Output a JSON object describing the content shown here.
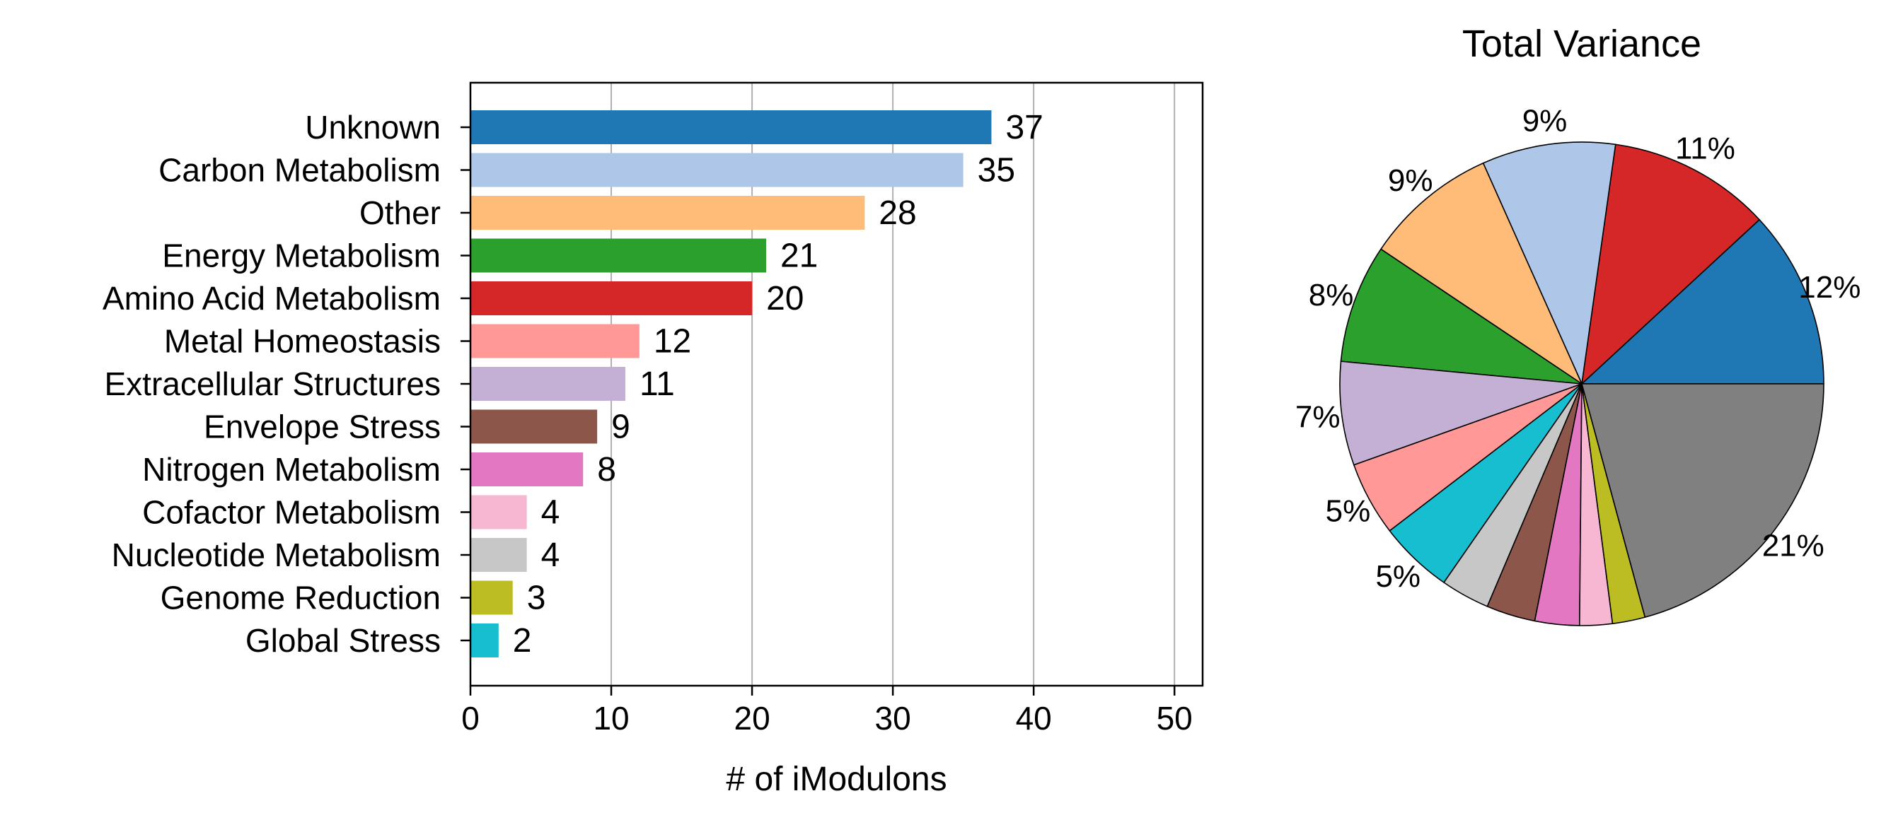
{
  "chart_data": [
    {
      "type": "bar",
      "orientation": "horizontal",
      "title": "",
      "xlabel": "# of iModulons",
      "ylabel": "",
      "xlim": [
        0,
        52
      ],
      "xticks": [
        0,
        10,
        20,
        30,
        40,
        50
      ],
      "grid": "vertical",
      "categories": [
        "Unknown",
        "Carbon Metabolism",
        "Other",
        "Energy Metabolism",
        "Amino Acid Metabolism",
        "Metal Homeostasis",
        "Extracellular Structures",
        "Envelope Stress",
        "Nitrogen Metabolism",
        "Cofactor Metabolism",
        "Nucleotide Metabolism",
        "Genome Reduction",
        "Global Stress"
      ],
      "values": [
        37,
        35,
        28,
        21,
        20,
        12,
        11,
        9,
        8,
        4,
        4,
        3,
        2
      ],
      "colors": [
        "#1f77b4",
        "#aec7e8",
        "#ffbb78",
        "#2ca02c",
        "#d62728",
        "#ff9896",
        "#c5b0d5",
        "#8c564b",
        "#e377c2",
        "#f7b6d2",
        "#c7c7c7",
        "#bcbd22",
        "#17becf"
      ]
    },
    {
      "type": "pie",
      "title": "Total Variance",
      "start_angle_deg": 0,
      "direction": "counterclockwise",
      "slices": [
        {
          "value": 12,
          "label": "12%",
          "color": "#1f77b4"
        },
        {
          "value": 11,
          "label": "11%",
          "color": "#d62728"
        },
        {
          "value": 9,
          "label": "9%",
          "color": "#aec7e8"
        },
        {
          "value": 9,
          "label": "9%",
          "color": "#ffbb78"
        },
        {
          "value": 8,
          "label": "8%",
          "color": "#2ca02c"
        },
        {
          "value": 7,
          "label": "7%",
          "color": "#c5b0d5"
        },
        {
          "value": 5,
          "label": "5%",
          "color": "#ff9896"
        },
        {
          "value": 5,
          "label": "5%",
          "color": "#17becf"
        },
        {
          "value": 3.3,
          "label": "",
          "color": "#c7c7c7"
        },
        {
          "value": 3.3,
          "label": "",
          "color": "#8c564b"
        },
        {
          "value": 3.0,
          "label": "",
          "color": "#e377c2"
        },
        {
          "value": 2.2,
          "label": "",
          "color": "#f7b6d2"
        },
        {
          "value": 2.2,
          "label": "",
          "color": "#bcbd22"
        },
        {
          "value": 21,
          "label": "21%",
          "color": "#808080"
        }
      ]
    }
  ]
}
